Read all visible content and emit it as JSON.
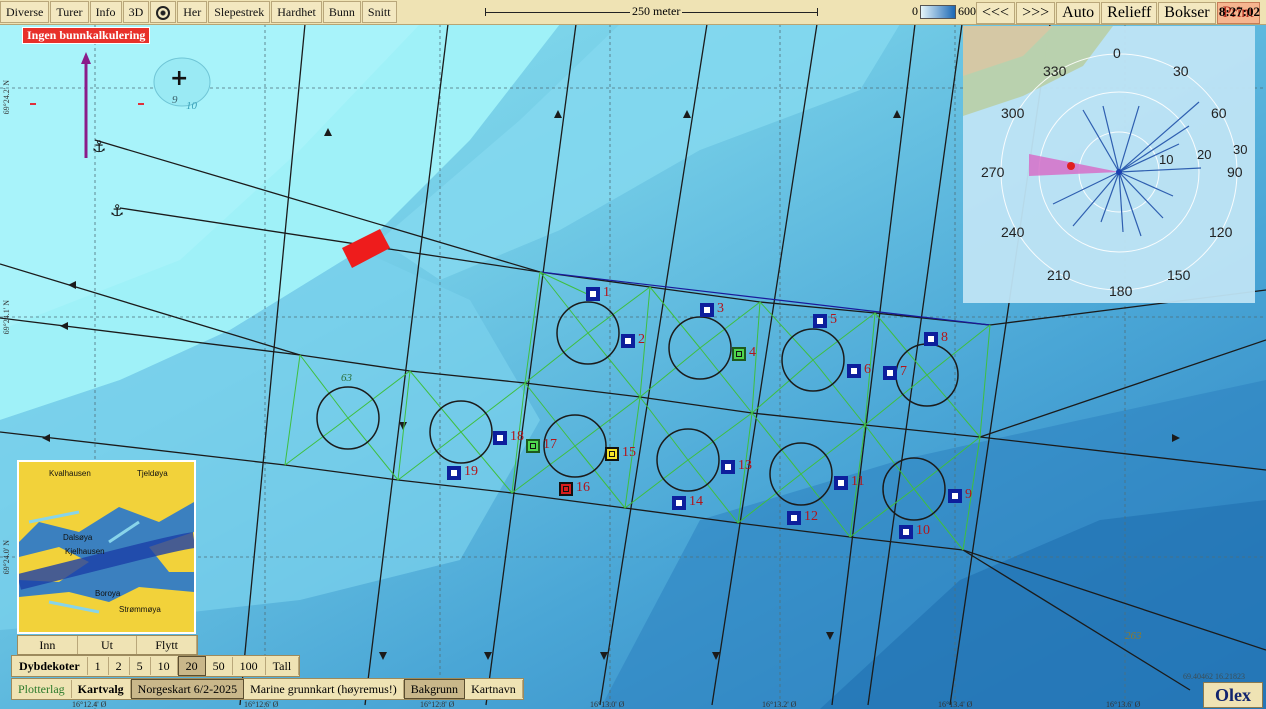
{
  "toolbar": {
    "left_buttons": [
      "Diverse",
      "Turer",
      "Info",
      "3D"
    ],
    "her": "Her",
    "middle_buttons": [
      "Slepestrek",
      "Hardhet",
      "Bunn",
      "Snitt"
    ],
    "scale_label": "250 meter",
    "depth_min": "0",
    "depth_max": "600",
    "right_buttons": [
      "<<<",
      ">>>",
      "Auto",
      "Relieff",
      "Bokser"
    ],
    "print": "Print",
    "clock": "8:27:02"
  },
  "warning": "Ingen bunnkalkulering",
  "markers": [
    {
      "n": "1",
      "type": "blue"
    },
    {
      "n": "2",
      "type": "blue"
    },
    {
      "n": "3",
      "type": "blue"
    },
    {
      "n": "4",
      "type": "green"
    },
    {
      "n": "5",
      "type": "blue"
    },
    {
      "n": "6",
      "type": "blue"
    },
    {
      "n": "7",
      "type": "blue"
    },
    {
      "n": "8",
      "type": "blue"
    },
    {
      "n": "9",
      "type": "blue"
    },
    {
      "n": "10",
      "type": "blue"
    },
    {
      "n": "11",
      "type": "blue"
    },
    {
      "n": "12",
      "type": "blue"
    },
    {
      "n": "13",
      "type": "blue"
    },
    {
      "n": "14",
      "type": "blue"
    },
    {
      "n": "15",
      "type": "yellow"
    },
    {
      "n": "16",
      "type": "red"
    },
    {
      "n": "17",
      "type": "green"
    },
    {
      "n": "18",
      "type": "blue"
    },
    {
      "n": "19",
      "type": "blue"
    }
  ],
  "depth_labels": {
    "top_left_9": "9",
    "top_left_10": "10",
    "cage_63": "63",
    "bottom_263": "263"
  },
  "coords_left": [
    "69°24.2' N",
    "69°24.1' N",
    "69°24.0' N"
  ],
  "coords_bottom": [
    "16°12.4' Ø",
    "16°12.6' Ø",
    "16°12.8' Ø",
    "16°13.0' Ø",
    "16°13.2' Ø",
    "16°13.4' Ø",
    "16°13.6' Ø"
  ],
  "coord_readout": "69.40462 16.21823",
  "sonar": {
    "angle_labels": [
      "0",
      "30",
      "60",
      "90",
      "120",
      "150",
      "180",
      "210",
      "240",
      "270",
      "300",
      "330"
    ],
    "range_labels": [
      "10",
      "20",
      "30"
    ]
  },
  "minimap": {
    "place_names": [
      "Kvalhausen",
      "Tjeldøya",
      "Dalsøya",
      "Kjelhausen",
      "Boroya",
      "Strømmøya"
    ]
  },
  "nav": [
    "Inn",
    "Ut",
    "Flytt"
  ],
  "dybdekoter": {
    "label": "Dybdekoter",
    "values": [
      "1",
      "2",
      "5",
      "10",
      "20",
      "50",
      "100",
      "Tall"
    ],
    "selected": "20"
  },
  "kartvalg": {
    "plotterlag": "Plotterlag",
    "label": "Kartvalg",
    "options": [
      "Norgeskart 6/2-2025",
      "Marine grunnkart (høyremus!)",
      "Bakgrunn",
      "Kartnavn"
    ]
  },
  "brand": "Olex",
  "colors": {
    "toolbar": "#efe3b4",
    "shallow": "#9be6f2",
    "deep": "#2f86c0",
    "route": "#1b1b1b",
    "mooring": "#3fbf3f",
    "marker_blue": "#0d1f9c"
  }
}
